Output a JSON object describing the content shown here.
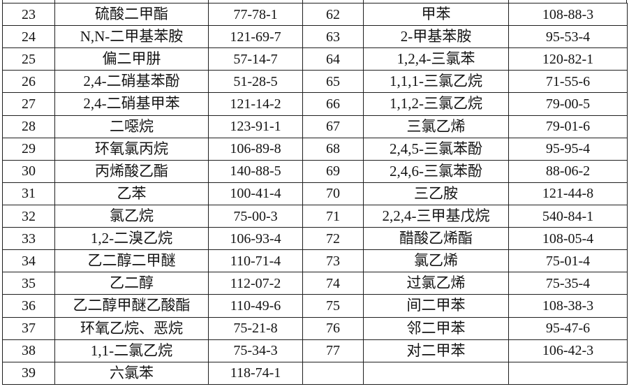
{
  "table": {
    "left": [
      {
        "no": "23",
        "name": "硫酸二甲酯",
        "cas": "77-78-1"
      },
      {
        "no": "24",
        "name": "N,N-二甲基苯胺",
        "cas": "121-69-7"
      },
      {
        "no": "25",
        "name": "偏二甲肼",
        "cas": "57-14-7"
      },
      {
        "no": "26",
        "name": "2,4-二硝基苯酚",
        "cas": "51-28-5"
      },
      {
        "no": "27",
        "name": "2,4-二硝基甲苯",
        "cas": "121-14-2"
      },
      {
        "no": "28",
        "name": "二噁烷",
        "cas": "123-91-1"
      },
      {
        "no": "29",
        "name": "环氧氯丙烷",
        "cas": "106-89-8"
      },
      {
        "no": "30",
        "name": "丙烯酸乙酯",
        "cas": "140-88-5"
      },
      {
        "no": "31",
        "name": "乙苯",
        "cas": "100-41-4"
      },
      {
        "no": "32",
        "name": "氯乙烷",
        "cas": "75-00-3"
      },
      {
        "no": "33",
        "name": "1,2-二溴乙烷",
        "cas": "106-93-4"
      },
      {
        "no": "34",
        "name": "乙二醇二甲醚",
        "cas": "110-71-4"
      },
      {
        "no": "35",
        "name": "乙二醇",
        "cas": "112-07-2"
      },
      {
        "no": "36",
        "name": "乙二醇甲醚乙酸酯",
        "cas": "110-49-6"
      },
      {
        "no": "37",
        "name": "环氧乙烷、恶烷",
        "cas": "75-21-8"
      },
      {
        "no": "38",
        "name": "1,1-二氯乙烷",
        "cas": "75-34-3"
      },
      {
        "no": "39",
        "name": "六氯苯",
        "cas": "118-74-1"
      }
    ],
    "right": [
      {
        "no": "62",
        "name": "甲苯",
        "cas": "108-88-3"
      },
      {
        "no": "63",
        "name": "2-甲基苯胺",
        "cas": "95-53-4"
      },
      {
        "no": "64",
        "name": "1,2,4-三氯苯",
        "cas": "120-82-1"
      },
      {
        "no": "65",
        "name": "1,1,1-三氯乙烷",
        "cas": "71-55-6"
      },
      {
        "no": "66",
        "name": "1,1,2-三氯乙烷",
        "cas": "79-00-5"
      },
      {
        "no": "67",
        "name": "三氯乙烯",
        "cas": "79-01-6"
      },
      {
        "no": "68",
        "name": "2,4,5-三氯苯酚",
        "cas": "95-95-4"
      },
      {
        "no": "69",
        "name": "2,4,6-三氯苯酚",
        "cas": "88-06-2"
      },
      {
        "no": "70",
        "name": "三乙胺",
        "cas": "121-44-8"
      },
      {
        "no": "71",
        "name": "2,2,4-三甲基戊烷",
        "cas": "540-84-1"
      },
      {
        "no": "72",
        "name": "醋酸乙烯酯",
        "cas": "108-05-4"
      },
      {
        "no": "73",
        "name": "氯乙烯",
        "cas": "75-01-4"
      },
      {
        "no": "74",
        "name": "过氯乙烯",
        "cas": "75-35-4"
      },
      {
        "no": "75",
        "name": "间二甲苯",
        "cas": "108-38-3"
      },
      {
        "no": "76",
        "name": "邻二甲苯",
        "cas": "95-47-6"
      },
      {
        "no": "77",
        "name": "对二甲苯",
        "cas": "106-42-3"
      },
      {
        "no": "",
        "name": "",
        "cas": ""
      }
    ]
  }
}
